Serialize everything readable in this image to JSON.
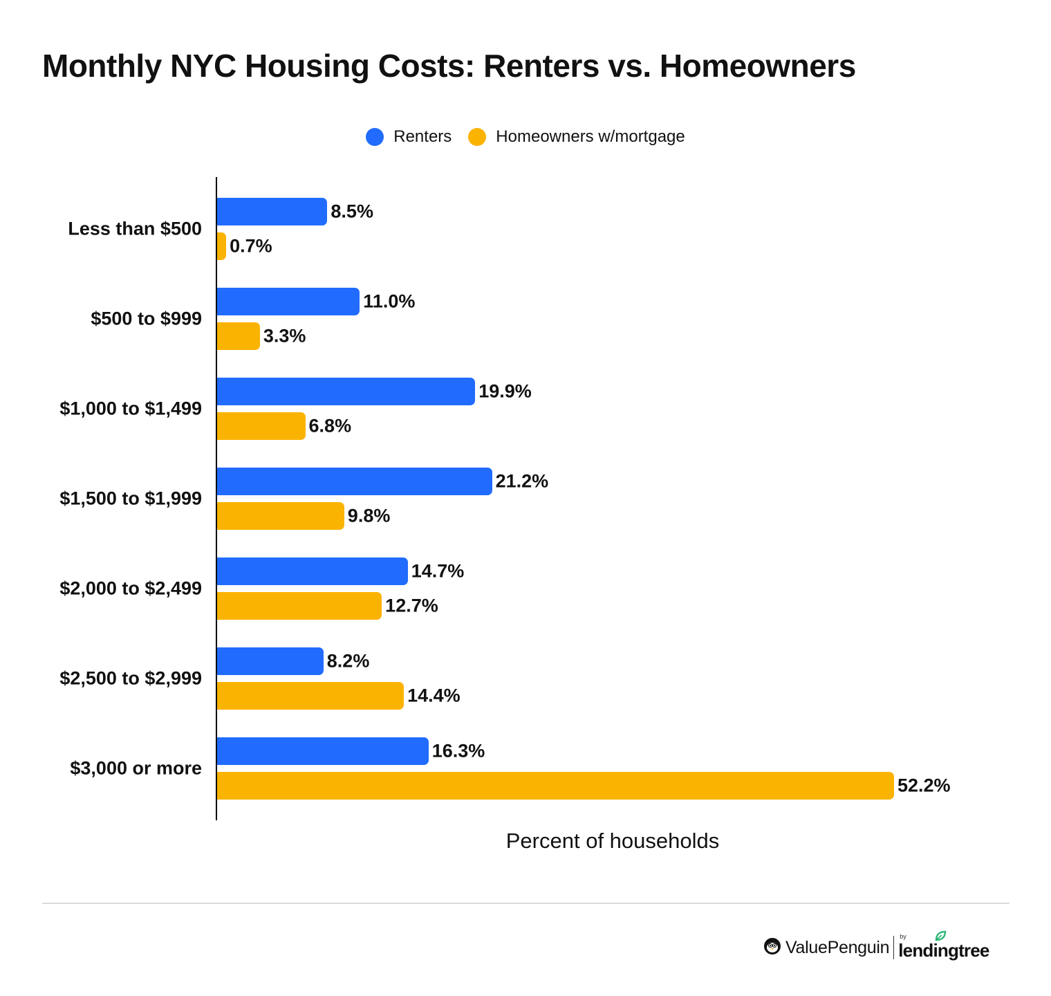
{
  "title": "Monthly NYC Housing Costs: Renters vs. Homeowners",
  "legend": {
    "items": [
      {
        "label": "Renters",
        "color": "#216cfe"
      },
      {
        "label": "Homeowners w/mortgage",
        "color": "#fbb302"
      }
    ]
  },
  "categories": [
    {
      "label": "Less than $500",
      "renters": "8.5%",
      "homeowners": "0.7%"
    },
    {
      "label": "$500 to $999",
      "renters": "11.0%",
      "homeowners": "3.3%"
    },
    {
      "label": "$1,000 to $1,499",
      "renters": "19.9%",
      "homeowners": "6.8%"
    },
    {
      "label": "$1,500 to $1,999",
      "renters": "21.2%",
      "homeowners": "9.8%"
    },
    {
      "label": "$2,000 to $2,499",
      "renters": "14.7%",
      "homeowners": "12.7%"
    },
    {
      "label": "$2,500 to $2,999",
      "renters": "8.2%",
      "homeowners": "14.4%"
    },
    {
      "label": "$3,000 or more",
      "renters": "16.3%",
      "homeowners": "52.2%"
    }
  ],
  "xlabel": "Percent of households",
  "footer": {
    "brand": "ValuePenguin",
    "by": "by",
    "partner": "lendingtree"
  },
  "chart_data": {
    "type": "bar",
    "orientation": "horizontal",
    "title": "Monthly NYC Housing Costs: Renters vs. Homeowners",
    "categories": [
      "Less than $500",
      "$500 to $999",
      "$1,000 to $1,499",
      "$1,500 to $1,999",
      "$2,000 to $2,499",
      "$2,500 to $2,999",
      "$3,000 or more"
    ],
    "series": [
      {
        "name": "Renters",
        "color": "#216cfe",
        "values": [
          8.5,
          11.0,
          19.9,
          21.2,
          14.7,
          8.2,
          16.3
        ]
      },
      {
        "name": "Homeowners w/mortgage",
        "color": "#fbb302",
        "values": [
          0.7,
          3.3,
          6.8,
          9.8,
          12.7,
          14.4,
          52.2
        ]
      }
    ],
    "xlabel": "Percent of households",
    "ylabel": "",
    "xlim": [
      0,
      52.2
    ],
    "grid": false,
    "data_labels": true,
    "legend_position": "top"
  }
}
